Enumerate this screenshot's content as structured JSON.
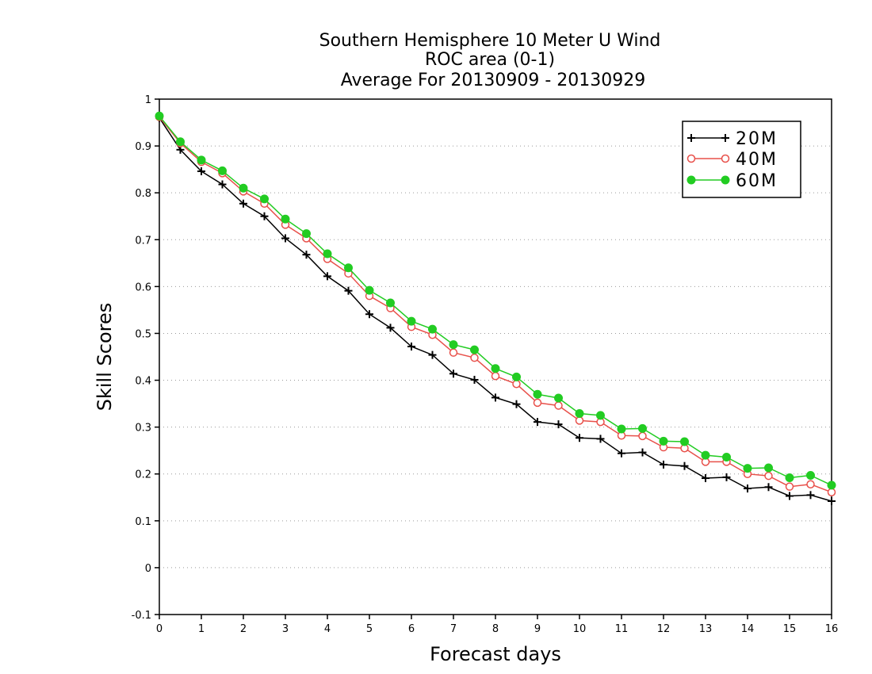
{
  "chart_data": {
    "type": "line",
    "title_lines": [
      "Southern Hemisphere 10 Meter U Wind",
      "ROC area (0-1)",
      "Average For 20130909 - 20130929"
    ],
    "xlabel": "Forecast days",
    "ylabel": "Skill Scores",
    "xlim": [
      0,
      16
    ],
    "ylim": [
      -0.1,
      1
    ],
    "x_ticks": [
      0,
      1,
      2,
      3,
      4,
      5,
      6,
      7,
      8,
      9,
      10,
      11,
      12,
      13,
      14,
      15,
      16
    ],
    "x_tick_labels": [
      "0",
      "1",
      "2",
      "3",
      "4",
      "5",
      "6",
      "7",
      "8",
      "9",
      "10",
      "11",
      "12",
      "13",
      "14",
      "15",
      "16"
    ],
    "y_ticks": [
      -0.1,
      0,
      0.1,
      0.2,
      0.3,
      0.4,
      0.5,
      0.6,
      0.7,
      0.8,
      0.9,
      1
    ],
    "y_tick_labels": [
      "-0.1",
      "0",
      "0.1",
      "0.2",
      "0.3",
      "0.4",
      "0.5",
      "0.6",
      "0.7",
      "0.8",
      "0.9",
      "1"
    ],
    "grid": "horizontal dotted",
    "legend_position": "top-right",
    "x": [
      0,
      0.5,
      1,
      1.5,
      2,
      2.5,
      3,
      3.5,
      4,
      4.5,
      5,
      5.5,
      6,
      6.5,
      7,
      7.5,
      8,
      8.5,
      9,
      9.5,
      10,
      10.5,
      11,
      11.5,
      12,
      12.5,
      13,
      13.5,
      14,
      14.5,
      15,
      15.5,
      16
    ],
    "series": [
      {
        "name": "20M",
        "color": "#000000",
        "marker": "plus",
        "values": [
          0.96,
          0.892,
          0.846,
          0.818,
          0.777,
          0.75,
          0.703,
          0.668,
          0.622,
          0.591,
          0.541,
          0.512,
          0.472,
          0.454,
          0.414,
          0.401,
          0.363,
          0.349,
          0.311,
          0.306,
          0.277,
          0.275,
          0.244,
          0.246,
          0.22,
          0.217,
          0.191,
          0.193,
          0.169,
          0.172,
          0.153,
          0.155,
          0.142
        ]
      },
      {
        "name": "40M",
        "color": "#e8504a",
        "marker": "open-circle",
        "values": [
          0.962,
          0.906,
          0.866,
          0.842,
          0.803,
          0.777,
          0.732,
          0.703,
          0.659,
          0.628,
          0.58,
          0.554,
          0.514,
          0.497,
          0.459,
          0.448,
          0.409,
          0.392,
          0.352,
          0.346,
          0.314,
          0.311,
          0.282,
          0.281,
          0.257,
          0.255,
          0.226,
          0.226,
          0.2,
          0.196,
          0.173,
          0.178,
          0.161
        ]
      },
      {
        "name": "60M",
        "color": "#22cc22",
        "marker": "filled-circle",
        "values": [
          0.964,
          0.909,
          0.87,
          0.847,
          0.81,
          0.787,
          0.744,
          0.713,
          0.67,
          0.64,
          0.592,
          0.565,
          0.526,
          0.509,
          0.476,
          0.465,
          0.425,
          0.407,
          0.37,
          0.362,
          0.329,
          0.325,
          0.296,
          0.297,
          0.27,
          0.269,
          0.24,
          0.236,
          0.212,
          0.213,
          0.192,
          0.197,
          0.176
        ]
      }
    ]
  }
}
